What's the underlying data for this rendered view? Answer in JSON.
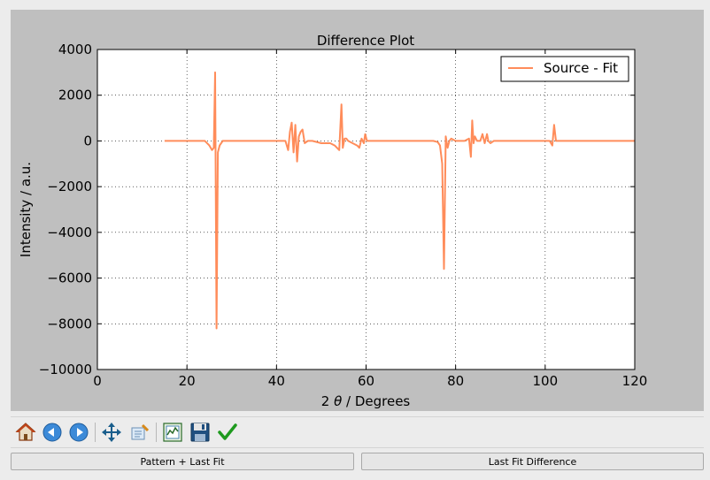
{
  "plot": {
    "title": "Difference Plot",
    "xlabel_prefix": "2 ",
    "xlabel_theta": "θ",
    "xlabel_suffix": " / Degrees",
    "ylabel": "Intensity / a.u."
  },
  "chart_data": {
    "type": "line",
    "title": "Difference Plot",
    "xlabel": "2 θ / Degrees",
    "ylabel": "Intensity / a.u.",
    "xlim": [
      0,
      120
    ],
    "ylim": [
      -10000,
      4000
    ],
    "xticks": [
      "0",
      "20",
      "40",
      "60",
      "80",
      "100",
      "120"
    ],
    "yticks": [
      "4000",
      "2000",
      "0",
      "−2000",
      "−4000",
      "−6000",
      "−8000",
      "−10000"
    ],
    "grid": true,
    "legend_position": "top-right",
    "series": [
      {
        "name": "Source - Fit",
        "color": "#ff8c5a",
        "x": [
          15,
          20,
          24,
          25,
          25.6,
          26,
          26.3,
          26.6,
          26.9,
          27.3,
          28,
          30,
          35,
          40,
          42,
          42.6,
          43,
          43.4,
          43.8,
          44.2,
          44.6,
          45,
          45.4,
          45.8,
          46.3,
          47,
          48,
          50,
          52,
          53,
          54,
          54.5,
          54.8,
          55.2,
          55.6,
          56,
          57,
          58,
          58.5,
          59,
          59.5,
          59.8,
          60.2,
          61,
          62,
          65,
          70,
          75,
          76,
          76.5,
          77,
          77.4,
          77.8,
          78.2,
          78.6,
          79,
          80,
          81,
          82,
          83,
          83.4,
          83.7,
          84,
          84.3,
          84.8,
          85.5,
          86,
          86.5,
          87,
          87.3,
          87.8,
          88.5,
          90,
          95,
          100,
          101,
          101.6,
          102,
          102.4,
          103,
          104,
          106,
          110,
          115,
          120
        ],
        "y": [
          0,
          0,
          0,
          -200,
          -400,
          -300,
          3000,
          -8200,
          -500,
          -200,
          0,
          0,
          0,
          0,
          0,
          -400,
          400,
          800,
          -500,
          700,
          -900,
          200,
          400,
          500,
          -100,
          0,
          0,
          -100,
          -100,
          -200,
          -400,
          1600,
          -300,
          100,
          100,
          0,
          -100,
          -200,
          -300,
          100,
          -100,
          300,
          0,
          0,
          0,
          0,
          0,
          0,
          -50,
          -200,
          -1000,
          -5600,
          200,
          -300,
          0,
          100,
          0,
          0,
          0,
          100,
          -700,
          900,
          -100,
          200,
          0,
          0,
          300,
          -100,
          300,
          0,
          -100,
          0,
          0,
          0,
          0,
          0,
          -200,
          700,
          0,
          0,
          0,
          0,
          0,
          0,
          0
        ]
      }
    ]
  },
  "toolbar": {
    "items": [
      {
        "name": "home-icon"
      },
      {
        "name": "back-arrow-icon"
      },
      {
        "name": "forward-arrow-icon"
      },
      {
        "name": "pan-icon"
      },
      {
        "name": "zoom-icon"
      },
      {
        "name": "subplots-config-icon"
      },
      {
        "name": "save-icon"
      },
      {
        "name": "edit-checkmark-icon"
      }
    ]
  },
  "buttons": {
    "pattern_last_fit": "Pattern + Last Fit",
    "last_fit_difference": "Last Fit Difference"
  }
}
